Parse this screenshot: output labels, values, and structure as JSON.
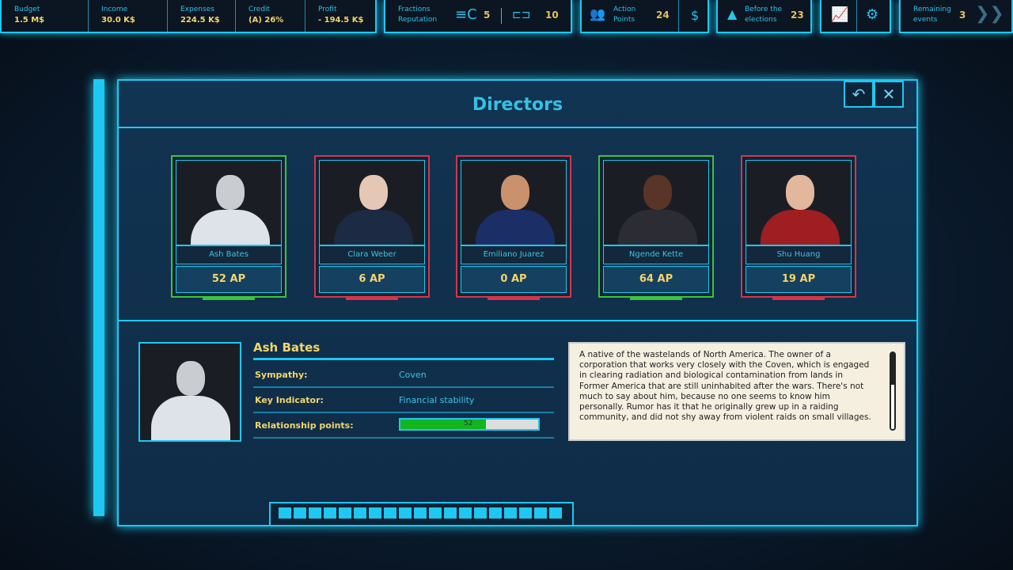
{
  "topbar": {
    "budget": {
      "label": "Budget",
      "value": "1.5 M$"
    },
    "income": {
      "label": "Income",
      "value": "30.0 K$"
    },
    "expenses": {
      "label": "Expenses",
      "value": "224.5 K$"
    },
    "credit": {
      "label": "Credit",
      "value": "(A) 26%"
    },
    "profit": {
      "label": "Profit",
      "value": "- 194.5 K$"
    },
    "reputation": {
      "label1": "Fractions",
      "label2": "Reputation",
      "coven": "5",
      "other": "10"
    },
    "action_points": {
      "label1": "Action",
      "label2": "Points",
      "value": "24",
      "buy": "$"
    },
    "elections": {
      "label1": "Before the",
      "label2": "elections",
      "value": "23"
    },
    "events": {
      "label1": "Remaining",
      "label2": "events",
      "value": "3"
    }
  },
  "dialog": {
    "title": "Directors",
    "back_icon": "undo-icon",
    "close_icon": "close-icon"
  },
  "directors": [
    {
      "name": "Ash Bates",
      "ap": "52 AP",
      "status_color": "#3cc43c"
    },
    {
      "name": "Clara Weber",
      "ap": "6 AP",
      "status_color": "#d8344a"
    },
    {
      "name": "Emiliano Juarez",
      "ap": "0 AP",
      "status_color": "#d8344a"
    },
    {
      "name": "Ngende Kette",
      "ap": "64 AP",
      "status_color": "#3cc43c"
    },
    {
      "name": "Shu Huang",
      "ap": "19 AP",
      "status_color": "#d8344a"
    }
  ],
  "selected": {
    "name": "Ash Bates",
    "sympathy_label": "Sympathy:",
    "sympathy": "Coven",
    "key_label": "Key Indicator:",
    "key": "Financial stability",
    "rel_label": "Relationship points:",
    "rel_value": "52",
    "rel_fill": 0.62,
    "description": "A native of the wastelands of North America. The owner of a corporation that works very closely with the Coven, which is engaged in clearing radiation and biological contamination from lands in Former America that are still uninhabited after the wars. There's not much to say about him, because no one seems to know him personally. Rumor has it that he originally grew up in a raiding community, and did not shy away from violent raids on small villages."
  }
}
